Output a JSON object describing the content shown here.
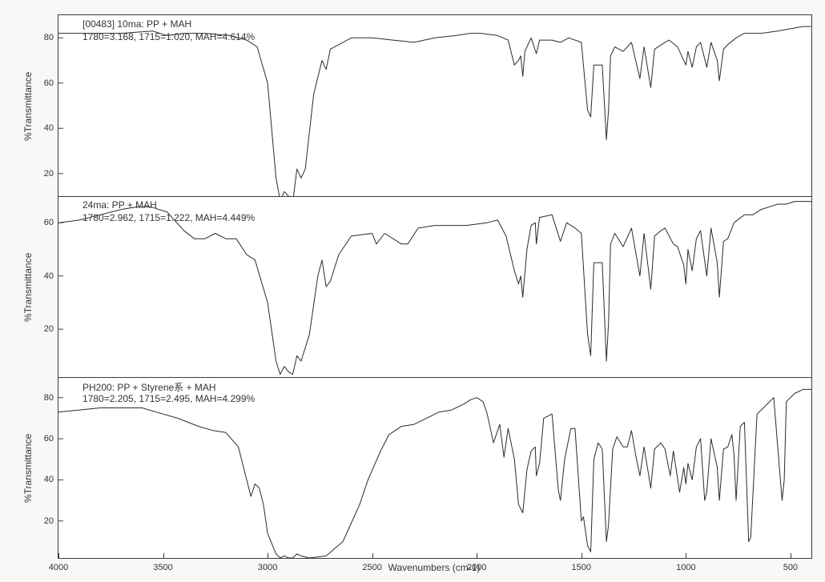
{
  "chart": {
    "type": "line-multiplot",
    "background_color": "#ffffff",
    "page_background_color": "#f9f8f6",
    "frame_border_color": "#3b3b3b",
    "line_width": 1,
    "xaxis": {
      "label": "Wavenumbers (cm-1)",
      "min": 4000,
      "max": 400,
      "reversed": true,
      "ticks": [
        4000,
        3500,
        3000,
        2500,
        2000,
        1500,
        1000,
        500
      ],
      "label_fontsize": 12,
      "tick_fontsize": 11
    },
    "panels": [
      {
        "id": "panel-1",
        "title": "[00483] 10ma: PP + MAH",
        "subtitle": "1780=3.168, 1715=1.020, MAH=4.614%",
        "ylabel": "%Transmittance",
        "line_color": "#2b2b2b",
        "ymin": 10,
        "ymax": 90,
        "yticks": [
          20,
          40,
          60,
          80
        ],
        "data": [
          [
            4000,
            82
          ],
          [
            3850,
            82
          ],
          [
            3700,
            82
          ],
          [
            3550,
            83
          ],
          [
            3480,
            81
          ],
          [
            3400,
            82
          ],
          [
            3300,
            82
          ],
          [
            3180,
            81
          ],
          [
            3100,
            79
          ],
          [
            3050,
            76
          ],
          [
            3000,
            60
          ],
          [
            2960,
            18
          ],
          [
            2940,
            8
          ],
          [
            2920,
            12
          ],
          [
            2900,
            10
          ],
          [
            2880,
            7
          ],
          [
            2860,
            22
          ],
          [
            2840,
            18
          ],
          [
            2820,
            22
          ],
          [
            2780,
            55
          ],
          [
            2740,
            70
          ],
          [
            2720,
            66
          ],
          [
            2700,
            75
          ],
          [
            2600,
            80
          ],
          [
            2500,
            80
          ],
          [
            2400,
            79
          ],
          [
            2300,
            78
          ],
          [
            2200,
            80
          ],
          [
            2100,
            81
          ],
          [
            2030,
            82
          ],
          [
            1980,
            82
          ],
          [
            1900,
            81
          ],
          [
            1850,
            79
          ],
          [
            1820,
            68
          ],
          [
            1800,
            70
          ],
          [
            1790,
            72
          ],
          [
            1780,
            63
          ],
          [
            1770,
            74
          ],
          [
            1740,
            80
          ],
          [
            1715,
            73
          ],
          [
            1700,
            79
          ],
          [
            1640,
            79
          ],
          [
            1600,
            78
          ],
          [
            1560,
            80
          ],
          [
            1500,
            78
          ],
          [
            1470,
            48
          ],
          [
            1455,
            45
          ],
          [
            1440,
            68
          ],
          [
            1400,
            68
          ],
          [
            1380,
            35
          ],
          [
            1370,
            48
          ],
          [
            1360,
            72
          ],
          [
            1340,
            76
          ],
          [
            1300,
            74
          ],
          [
            1260,
            78
          ],
          [
            1220,
            62
          ],
          [
            1200,
            76
          ],
          [
            1168,
            58
          ],
          [
            1150,
            75
          ],
          [
            1100,
            78
          ],
          [
            1080,
            79
          ],
          [
            1040,
            76
          ],
          [
            1000,
            68
          ],
          [
            990,
            74
          ],
          [
            970,
            67
          ],
          [
            950,
            76
          ],
          [
            930,
            78
          ],
          [
            900,
            67
          ],
          [
            880,
            78
          ],
          [
            850,
            70
          ],
          [
            840,
            61
          ],
          [
            820,
            75
          ],
          [
            800,
            77
          ],
          [
            760,
            80
          ],
          [
            720,
            82
          ],
          [
            640,
            82
          ],
          [
            560,
            83
          ],
          [
            500,
            84
          ],
          [
            440,
            85
          ],
          [
            400,
            85
          ]
        ]
      },
      {
        "id": "panel-2",
        "title": "24ma: PP + MAH",
        "subtitle": "1780=2.962, 1715=1.222, MAH=4.449%",
        "ylabel": "%Transmittance",
        "line_color": "#2b2b2b",
        "ymin": 2,
        "ymax": 70,
        "yticks": [
          20,
          40,
          60
        ],
        "data": [
          [
            4000,
            60
          ],
          [
            3900,
            61
          ],
          [
            3800,
            63
          ],
          [
            3700,
            65
          ],
          [
            3620,
            66
          ],
          [
            3560,
            66
          ],
          [
            3480,
            64
          ],
          [
            3400,
            57
          ],
          [
            3350,
            54
          ],
          [
            3300,
            54
          ],
          [
            3250,
            56
          ],
          [
            3200,
            54
          ],
          [
            3150,
            54
          ],
          [
            3100,
            48
          ],
          [
            3060,
            46
          ],
          [
            3000,
            30
          ],
          [
            2960,
            8
          ],
          [
            2940,
            3
          ],
          [
            2920,
            6
          ],
          [
            2900,
            4
          ],
          [
            2880,
            3
          ],
          [
            2860,
            10
          ],
          [
            2840,
            8
          ],
          [
            2800,
            18
          ],
          [
            2760,
            40
          ],
          [
            2740,
            46
          ],
          [
            2720,
            36
          ],
          [
            2700,
            38
          ],
          [
            2660,
            48
          ],
          [
            2600,
            55
          ],
          [
            2500,
            56
          ],
          [
            2480,
            52
          ],
          [
            2440,
            56
          ],
          [
            2360,
            52
          ],
          [
            2330,
            52
          ],
          [
            2280,
            58
          ],
          [
            2200,
            59
          ],
          [
            2150,
            59
          ],
          [
            2050,
            59
          ],
          [
            1950,
            60
          ],
          [
            1900,
            61
          ],
          [
            1860,
            55
          ],
          [
            1820,
            42
          ],
          [
            1800,
            37
          ],
          [
            1790,
            40
          ],
          [
            1780,
            32
          ],
          [
            1760,
            50
          ],
          [
            1740,
            59
          ],
          [
            1720,
            60
          ],
          [
            1715,
            52
          ],
          [
            1700,
            62
          ],
          [
            1640,
            63
          ],
          [
            1600,
            53
          ],
          [
            1570,
            60
          ],
          [
            1530,
            58
          ],
          [
            1500,
            56
          ],
          [
            1470,
            18
          ],
          [
            1455,
            10
          ],
          [
            1440,
            45
          ],
          [
            1400,
            45
          ],
          [
            1380,
            8
          ],
          [
            1370,
            22
          ],
          [
            1360,
            52
          ],
          [
            1340,
            56
          ],
          [
            1300,
            51
          ],
          [
            1260,
            58
          ],
          [
            1220,
            40
          ],
          [
            1200,
            56
          ],
          [
            1168,
            35
          ],
          [
            1150,
            55
          ],
          [
            1120,
            57
          ],
          [
            1100,
            58
          ],
          [
            1060,
            52
          ],
          [
            1040,
            51
          ],
          [
            1010,
            44
          ],
          [
            1000,
            37
          ],
          [
            990,
            50
          ],
          [
            970,
            42
          ],
          [
            950,
            54
          ],
          [
            930,
            57
          ],
          [
            900,
            40
          ],
          [
            880,
            58
          ],
          [
            850,
            45
          ],
          [
            840,
            32
          ],
          [
            820,
            53
          ],
          [
            800,
            54
          ],
          [
            770,
            60
          ],
          [
            720,
            63
          ],
          [
            680,
            63
          ],
          [
            640,
            65
          ],
          [
            600,
            66
          ],
          [
            560,
            67
          ],
          [
            520,
            67
          ],
          [
            480,
            68
          ],
          [
            440,
            68
          ],
          [
            400,
            68
          ]
        ]
      },
      {
        "id": "panel-3",
        "title": "PH200: PP + Styrene系 + MAH",
        "subtitle": "1780=2.205, 1715=2.495, MAH=4.299%",
        "ylabel": "%Transmittance",
        "line_color": "#2b2b2b",
        "ymin": 2,
        "ymax": 90,
        "yticks": [
          20,
          40,
          60,
          80
        ],
        "data": [
          [
            4000,
            73
          ],
          [
            3900,
            74
          ],
          [
            3800,
            75
          ],
          [
            3700,
            75
          ],
          [
            3600,
            75
          ],
          [
            3500,
            72
          ],
          [
            3430,
            70
          ],
          [
            3380,
            68
          ],
          [
            3330,
            66
          ],
          [
            3260,
            64
          ],
          [
            3200,
            63
          ],
          [
            3140,
            56
          ],
          [
            3100,
            40
          ],
          [
            3080,
            32
          ],
          [
            3060,
            38
          ],
          [
            3040,
            36
          ],
          [
            3020,
            28
          ],
          [
            3000,
            14
          ],
          [
            2960,
            4
          ],
          [
            2940,
            2
          ],
          [
            2920,
            3
          ],
          [
            2900,
            2
          ],
          [
            2880,
            2
          ],
          [
            2860,
            4
          ],
          [
            2840,
            3
          ],
          [
            2800,
            2
          ],
          [
            2720,
            3
          ],
          [
            2640,
            10
          ],
          [
            2560,
            28
          ],
          [
            2520,
            40
          ],
          [
            2460,
            54
          ],
          [
            2420,
            62
          ],
          [
            2360,
            66
          ],
          [
            2300,
            67
          ],
          [
            2240,
            70
          ],
          [
            2180,
            73
          ],
          [
            2120,
            74
          ],
          [
            2060,
            77
          ],
          [
            2030,
            79
          ],
          [
            2000,
            80
          ],
          [
            1970,
            78
          ],
          [
            1950,
            72
          ],
          [
            1920,
            58
          ],
          [
            1890,
            67
          ],
          [
            1870,
            51
          ],
          [
            1850,
            65
          ],
          [
            1820,
            50
          ],
          [
            1800,
            28
          ],
          [
            1790,
            26
          ],
          [
            1780,
            24
          ],
          [
            1760,
            45
          ],
          [
            1740,
            54
          ],
          [
            1720,
            56
          ],
          [
            1715,
            42
          ],
          [
            1700,
            48
          ],
          [
            1680,
            70
          ],
          [
            1640,
            72
          ],
          [
            1610,
            35
          ],
          [
            1600,
            30
          ],
          [
            1580,
            50
          ],
          [
            1550,
            65
          ],
          [
            1530,
            65
          ],
          [
            1500,
            20
          ],
          [
            1490,
            22
          ],
          [
            1470,
            8
          ],
          [
            1455,
            5
          ],
          [
            1440,
            50
          ],
          [
            1420,
            58
          ],
          [
            1400,
            55
          ],
          [
            1380,
            10
          ],
          [
            1370,
            18
          ],
          [
            1350,
            55
          ],
          [
            1330,
            61
          ],
          [
            1300,
            56
          ],
          [
            1280,
            56
          ],
          [
            1260,
            64
          ],
          [
            1240,
            52
          ],
          [
            1220,
            42
          ],
          [
            1200,
            56
          ],
          [
            1168,
            36
          ],
          [
            1150,
            55
          ],
          [
            1120,
            58
          ],
          [
            1100,
            55
          ],
          [
            1075,
            42
          ],
          [
            1060,
            54
          ],
          [
            1030,
            34
          ],
          [
            1010,
            46
          ],
          [
            1000,
            38
          ],
          [
            990,
            48
          ],
          [
            970,
            40
          ],
          [
            950,
            56
          ],
          [
            930,
            60
          ],
          [
            910,
            30
          ],
          [
            900,
            34
          ],
          [
            880,
            60
          ],
          [
            850,
            46
          ],
          [
            840,
            30
          ],
          [
            820,
            55
          ],
          [
            800,
            56
          ],
          [
            780,
            62
          ],
          [
            770,
            52
          ],
          [
            760,
            30
          ],
          [
            740,
            66
          ],
          [
            720,
            68
          ],
          [
            700,
            10
          ],
          [
            690,
            12
          ],
          [
            660,
            72
          ],
          [
            620,
            76
          ],
          [
            580,
            80
          ],
          [
            540,
            30
          ],
          [
            530,
            40
          ],
          [
            520,
            78
          ],
          [
            480,
            82
          ],
          [
            440,
            84
          ],
          [
            400,
            84
          ]
        ]
      }
    ]
  }
}
